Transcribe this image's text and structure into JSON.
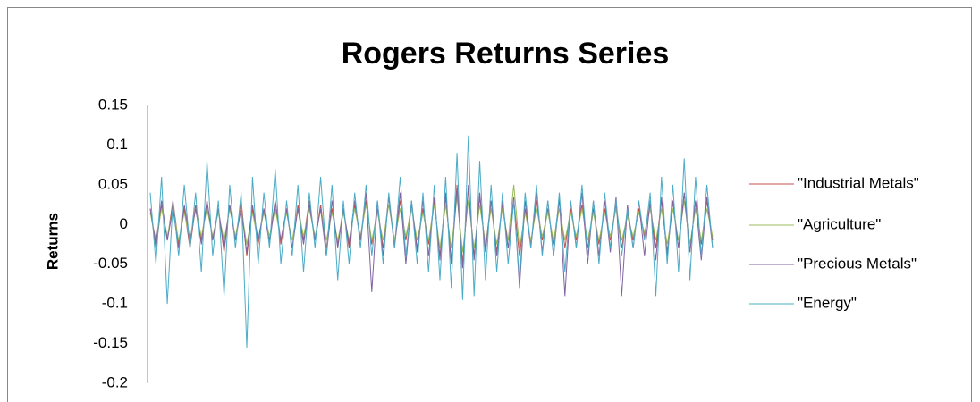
{
  "chart_data": {
    "type": "line",
    "title": "Rogers Returns Series",
    "y_label": "Returns",
    "ylim": [
      -0.2,
      0.15
    ],
    "yticks": [
      -0.2,
      -0.15,
      -0.1,
      -0.05,
      0,
      0.05,
      0.1,
      0.15
    ],
    "grid": false,
    "legend": "right",
    "series": [
      {
        "name": "\"Industrial Metals\"",
        "color": "#c0504d",
        "values": [
          0.02,
          -0.03,
          0.025,
          -0.02,
          0.03,
          -0.025,
          0.02,
          -0.03,
          0.025,
          -0.02,
          0.03,
          -0.02,
          0.02,
          -0.035,
          0.025,
          -0.02,
          0.03,
          -0.04,
          0.02,
          -0.025,
          0.02,
          -0.02,
          0.03,
          -0.025,
          0.02,
          -0.03,
          0.025,
          -0.02,
          0.03,
          -0.02,
          0.025,
          -0.03,
          0.02,
          -0.025,
          0.02,
          -0.03,
          0.025,
          -0.02,
          0.03,
          -0.025,
          0.02,
          -0.03,
          0.035,
          -0.025,
          0.03,
          -0.02,
          0.025,
          -0.03,
          0.02,
          -0.025,
          0.03,
          -0.04,
          0.035,
          -0.045,
          0.05,
          -0.05,
          0.045,
          -0.04,
          0.035,
          -0.03,
          0.03,
          -0.035,
          0.025,
          -0.03,
          0.03,
          -0.04,
          0.02,
          -0.025,
          0.03,
          -0.02,
          0.02,
          -0.025,
          0.03,
          -0.03,
          0.02,
          -0.02,
          0.025,
          -0.03,
          0.02,
          -0.025,
          0.02,
          -0.02,
          0.025,
          -0.03,
          0.015,
          -0.02,
          0.02,
          -0.015,
          0.025,
          -0.03,
          0.03,
          -0.035,
          0.03,
          -0.03,
          0.04,
          -0.035,
          0.03,
          -0.025,
          0.03,
          -0.02
        ]
      },
      {
        "name": "\"Agriculture\"",
        "color": "#9bbb59",
        "values": [
          0.015,
          -0.02,
          0.02,
          -0.015,
          0.02,
          -0.02,
          0.015,
          -0.02,
          0.02,
          -0.015,
          0.02,
          -0.015,
          0.015,
          -0.02,
          0.02,
          -0.015,
          0.02,
          -0.025,
          0.015,
          -0.02,
          0.015,
          -0.015,
          0.02,
          -0.02,
          0.015,
          -0.02,
          0.02,
          -0.015,
          0.02,
          -0.015,
          0.02,
          -0.02,
          0.015,
          -0.02,
          0.015,
          -0.02,
          0.02,
          -0.015,
          0.025,
          -0.02,
          0.015,
          -0.02,
          0.025,
          -0.02,
          0.02,
          -0.015,
          0.02,
          -0.02,
          0.015,
          -0.02,
          0.025,
          -0.03,
          0.025,
          -0.03,
          0.035,
          -0.035,
          0.03,
          -0.03,
          0.025,
          -0.025,
          0.02,
          -0.025,
          0.02,
          -0.02,
          0.05,
          -0.03,
          0.015,
          -0.02,
          0.02,
          -0.015,
          0.015,
          -0.02,
          0.02,
          -0.02,
          0.015,
          -0.015,
          0.02,
          -0.02,
          0.015,
          -0.02,
          0.015,
          -0.015,
          0.02,
          -0.02,
          0.01,
          -0.015,
          0.015,
          -0.01,
          0.02,
          -0.02,
          0.02,
          -0.025,
          0.02,
          -0.02,
          0.03,
          -0.025,
          0.02,
          -0.02,
          0.02,
          -0.015
        ]
      },
      {
        "name": "\"Precious Metals\"",
        "color": "#8064a2",
        "values": [
          0.02,
          -0.025,
          0.03,
          -0.02,
          0.02,
          -0.03,
          0.025,
          -0.02,
          0.02,
          -0.025,
          0.03,
          -0.02,
          0.02,
          -0.03,
          0.025,
          -0.02,
          0.02,
          -0.035,
          0.025,
          -0.02,
          0.02,
          -0.025,
          0.03,
          -0.02,
          0.02,
          -0.03,
          0.02,
          -0.025,
          0.025,
          -0.02,
          0.02,
          -0.04,
          0.03,
          -0.03,
          0.02,
          -0.025,
          0.03,
          -0.02,
          0.04,
          -0.085,
          0.03,
          -0.04,
          0.035,
          -0.03,
          0.04,
          -0.05,
          0.03,
          -0.035,
          0.03,
          -0.04,
          0.035,
          -0.045,
          0.04,
          -0.05,
          0.045,
          -0.055,
          0.05,
          -0.045,
          0.04,
          -0.035,
          0.03,
          -0.04,
          0.03,
          -0.03,
          0.035,
          -0.08,
          0.03,
          -0.03,
          0.04,
          -0.035,
          0.03,
          -0.04,
          0.035,
          -0.09,
          0.03,
          -0.03,
          0.04,
          -0.05,
          0.03,
          -0.04,
          0.03,
          -0.035,
          0.035,
          -0.09,
          0.025,
          -0.03,
          0.03,
          -0.04,
          0.03,
          -0.045,
          0.035,
          -0.04,
          0.03,
          -0.03,
          0.04,
          -0.035,
          0.03,
          -0.045,
          0.035,
          -0.03
        ]
      },
      {
        "name": "\"Energy\"",
        "color": "#4bacc6",
        "values": [
          0.04,
          -0.05,
          0.06,
          -0.1,
          0.03,
          -0.04,
          0.05,
          -0.03,
          0.04,
          -0.06,
          0.08,
          -0.04,
          0.03,
          -0.09,
          0.05,
          -0.03,
          0.04,
          -0.155,
          0.06,
          -0.05,
          0.04,
          -0.03,
          0.07,
          -0.05,
          0.03,
          -0.04,
          0.05,
          -0.06,
          0.04,
          -0.03,
          0.06,
          -0.04,
          0.05,
          -0.07,
          0.03,
          -0.05,
          0.04,
          -0.03,
          0.05,
          -0.04,
          0.03,
          -0.05,
          0.04,
          -0.03,
          0.06,
          -0.04,
          0.03,
          -0.05,
          0.04,
          -0.06,
          0.05,
          -0.07,
          0.06,
          -0.08,
          0.09,
          -0.095,
          0.112,
          -0.09,
          0.08,
          -0.07,
          0.05,
          -0.06,
          0.04,
          -0.05,
          0.03,
          -0.07,
          0.04,
          -0.03,
          0.05,
          -0.04,
          0.03,
          -0.04,
          0.04,
          -0.06,
          0.03,
          -0.03,
          0.05,
          -0.04,
          0.03,
          -0.05,
          0.04,
          -0.03,
          0.03,
          -0.04,
          0.02,
          -0.03,
          0.03,
          -0.02,
          0.04,
          -0.09,
          0.06,
          -0.05,
          0.05,
          -0.06,
          0.083,
          -0.07,
          0.06,
          -0.04,
          0.05,
          -0.03
        ]
      }
    ]
  }
}
